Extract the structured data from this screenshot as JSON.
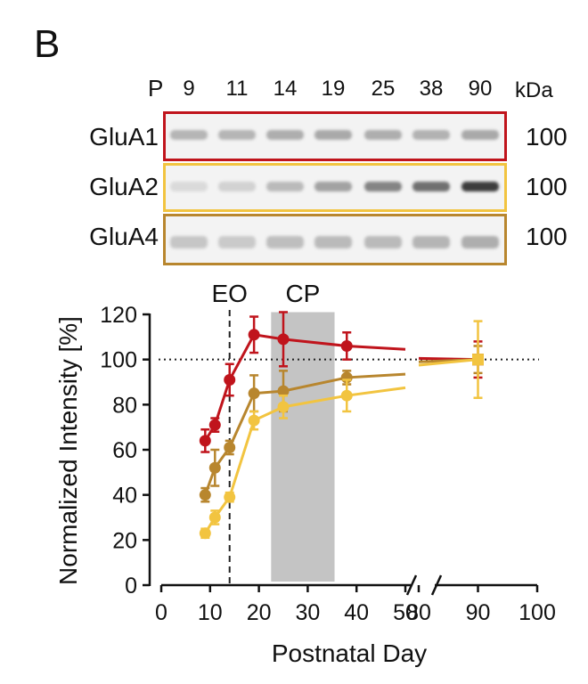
{
  "figure": {
    "panel_label": "B",
    "p_prefix": "P",
    "lane_days": [
      "9",
      "11",
      "14",
      "19",
      "25",
      "38",
      "90"
    ],
    "kda_label": "kDa",
    "blots": [
      {
        "name": "GluA1",
        "mw": "100",
        "color": "#c0141c"
      },
      {
        "name": "GluA2",
        "mw": "100",
        "color": "#f2c440"
      },
      {
        "name": "GluA4",
        "mw": "100",
        "color": "#b8862e"
      }
    ]
  },
  "chart_data": {
    "type": "line",
    "xlabel": "Postnatal Day",
    "ylabel": "Normalized Intensity [%]",
    "ylim": [
      0,
      120
    ],
    "yticks": [
      0,
      20,
      40,
      60,
      80,
      100,
      120
    ],
    "xticks_left": [
      0,
      10,
      20,
      30,
      40,
      50
    ],
    "xticks_right": [
      80,
      90,
      100
    ],
    "x_break": [
      50,
      80
    ],
    "reference_line_y": 100,
    "annotations": [
      {
        "label": "EO",
        "x": 14
      },
      {
        "label": "CP",
        "x_range": [
          22.5,
          35.5
        ]
      }
    ],
    "series": [
      {
        "color": "#c0141c",
        "x": [
          9,
          11,
          14,
          19,
          25,
          38,
          90
        ],
        "y": [
          64,
          71,
          91,
          111,
          109,
          106,
          100
        ],
        "err": [
          5,
          3,
          7,
          8,
          12,
          6,
          8
        ],
        "fit_end_left": 104.5,
        "fit_start_right": 100.5
      },
      {
        "color": "#b8862e",
        "x": [
          9,
          11,
          14,
          19,
          25,
          38,
          90
        ],
        "y": [
          40,
          52,
          61,
          85,
          86,
          92,
          100
        ],
        "err": [
          3,
          8,
          3,
          8,
          9,
          3,
          6
        ],
        "fit_end_left": 93.5,
        "fit_start_right": 99
      },
      {
        "color": "#f2c440",
        "x": [
          9,
          11,
          14,
          19,
          25,
          38,
          90
        ],
        "y": [
          23,
          30,
          39,
          73,
          79,
          84,
          100
        ],
        "err": [
          2,
          3,
          2,
          4,
          5,
          7,
          17
        ],
        "fit_end_left": 87.5,
        "fit_start_right": 97.5
      }
    ]
  }
}
